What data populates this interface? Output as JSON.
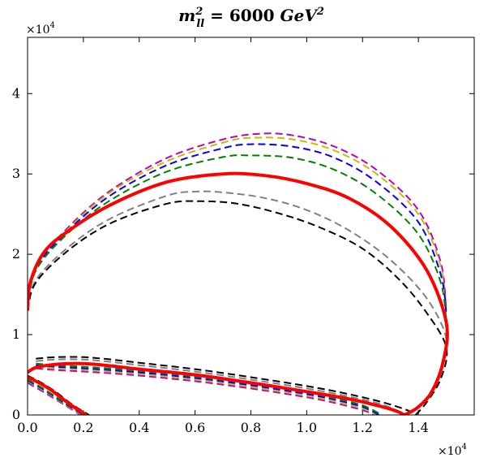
{
  "chart_data": {
    "type": "line",
    "title": {
      "symbol": "m",
      "superscript": "2",
      "subscript": "ll",
      "rest": " = 6000 ",
      "unit": "GeV",
      "unit_superscript": "2"
    },
    "xlabel": "",
    "ylabel": "",
    "x_multiplier": {
      "base": "×10",
      "exp": "4"
    },
    "y_multiplier": {
      "base": "×10",
      "exp": "4"
    },
    "xlim": [
      0,
      16000
    ],
    "ylim": [
      0,
      47000
    ],
    "x_ticks": [
      {
        "value": 0,
        "label": "0.0"
      },
      {
        "value": 2000,
        "label": "0.2"
      },
      {
        "value": 4000,
        "label": "0.4"
      },
      {
        "value": 6000,
        "label": "0.6"
      },
      {
        "value": 8000,
        "label": "0.8"
      },
      {
        "value": 10000,
        "label": "1.0"
      },
      {
        "value": 12000,
        "label": "1.2"
      },
      {
        "value": 14000,
        "label": "1.4"
      }
    ],
    "y_ticks": [
      {
        "value": 0,
        "label": "0"
      },
      {
        "value": 10000,
        "label": "1"
      },
      {
        "value": 20000,
        "label": "2"
      },
      {
        "value": 30000,
        "label": "3"
      },
      {
        "value": 40000,
        "label": "4"
      }
    ],
    "grid": false,
    "series": [
      {
        "name": "magenta",
        "color": "#bf00bf",
        "dashed": true,
        "width": 2,
        "segments": [
          [
            [
              0,
              13000
            ],
            [
              300,
              18500
            ],
            [
              1500,
              23500
            ],
            [
              3000,
              28000
            ],
            [
              5000,
              32000
            ],
            [
              7000,
              34300
            ],
            [
              8300,
              35000
            ],
            [
              9500,
              34800
            ],
            [
              11000,
              33400
            ],
            [
              12500,
              30500
            ],
            [
              14000,
              25500
            ],
            [
              14800,
              19000
            ],
            [
              15000,
              13000
            ]
          ],
          [
            [
              300,
              5800
            ],
            [
              1000,
              5600
            ],
            [
              2500,
              5300
            ],
            [
              4000,
              4900
            ],
            [
              6000,
              4200
            ],
            [
              8000,
              3300
            ],
            [
              10000,
              2200
            ],
            [
              11000,
              1500
            ],
            [
              12000,
              600
            ],
            [
              12400,
              0
            ]
          ],
          [
            [
              0,
              4000
            ],
            [
              600,
              2800
            ],
            [
              1300,
              1300
            ],
            [
              1900,
              0
            ]
          ]
        ]
      },
      {
        "name": "olive",
        "color": "#bfbf00",
        "dashed": true,
        "width": 2,
        "segments": [
          [
            [
              0,
              13000
            ],
            [
              300,
              18500
            ],
            [
              1500,
              23300
            ],
            [
              3000,
              27800
            ],
            [
              5000,
              31600
            ],
            [
              7000,
              33900
            ],
            [
              8000,
              34500
            ],
            [
              9500,
              34300
            ],
            [
              11000,
              32900
            ],
            [
              12500,
              30000
            ],
            [
              14000,
              25000
            ],
            [
              14800,
              18500
            ],
            [
              15000,
              13000
            ]
          ],
          [
            [
              300,
              6000
            ],
            [
              1000,
              5800
            ],
            [
              2500,
              5500
            ],
            [
              4000,
              5100
            ],
            [
              6000,
              4400
            ],
            [
              8000,
              3500
            ],
            [
              10000,
              2400
            ],
            [
              11000,
              1700
            ],
            [
              12000,
              800
            ],
            [
              12500,
              0
            ]
          ],
          [
            [
              0,
              4200
            ],
            [
              600,
              3000
            ],
            [
              1300,
              1400
            ],
            [
              1950,
              0
            ]
          ]
        ]
      },
      {
        "name": "blue",
        "color": "#0000ff",
        "dashed": true,
        "width": 2,
        "segments": [
          [
            [
              0,
              13000
            ],
            [
              300,
              18300
            ],
            [
              1500,
              23100
            ],
            [
              3000,
              27400
            ],
            [
              5000,
              31100
            ],
            [
              7000,
              33200
            ],
            [
              8000,
              33700
            ],
            [
              9500,
              33400
            ],
            [
              11000,
              32000
            ],
            [
              12500,
              29000
            ],
            [
              14000,
              24000
            ],
            [
              14800,
              17500
            ],
            [
              15000,
              12500
            ]
          ],
          [
            [
              300,
              6200
            ],
            [
              1000,
              6000
            ],
            [
              2500,
              5700
            ],
            [
              4000,
              5300
            ],
            [
              6000,
              4600
            ],
            [
              8000,
              3700
            ],
            [
              10000,
              2600
            ],
            [
              11000,
              1900
            ],
            [
              12000,
              1000
            ],
            [
              12600,
              0
            ]
          ],
          [
            [
              0,
              4300
            ],
            [
              600,
              3100
            ],
            [
              1300,
              1500
            ],
            [
              2000,
              0
            ]
          ]
        ]
      },
      {
        "name": "green",
        "color": "#008000",
        "dashed": true,
        "width": 2,
        "segments": [
          [
            [
              0,
              13000
            ],
            [
              300,
              18000
            ],
            [
              1500,
              22800
            ],
            [
              3000,
              26800
            ],
            [
              5000,
              30300
            ],
            [
              7000,
              32100
            ],
            [
              8000,
              32300
            ],
            [
              9500,
              32000
            ],
            [
              11000,
              30500
            ],
            [
              12500,
              27500
            ],
            [
              14000,
              22500
            ],
            [
              14800,
              16500
            ],
            [
              15000,
              11500
            ]
          ],
          [
            [
              300,
              6400
            ],
            [
              1000,
              6200
            ],
            [
              2500,
              5900
            ],
            [
              4000,
              5500
            ],
            [
              6000,
              4800
            ],
            [
              8000,
              3900
            ],
            [
              10000,
              2800
            ],
            [
              11000,
              2100
            ],
            [
              12000,
              1200
            ],
            [
              12700,
              0
            ]
          ],
          [
            [
              0,
              4400
            ],
            [
              600,
              3200
            ],
            [
              1300,
              1600
            ],
            [
              2050,
              0
            ]
          ]
        ]
      },
      {
        "name": "red",
        "color": "#ff0000",
        "dashed": false,
        "width": 4,
        "segments": [
          [
            [
              0,
              13000
            ],
            [
              100,
              16500
            ],
            [
              600,
              20300
            ],
            [
              1500,
              23000
            ],
            [
              3000,
              26200
            ],
            [
              5000,
              29000
            ],
            [
              7000,
              30000
            ],
            [
              8500,
              29800
            ],
            [
              10000,
              28800
            ],
            [
              11500,
              27000
            ],
            [
              13000,
              23500
            ],
            [
              14300,
              18000
            ],
            [
              15000,
              11500
            ],
            [
              14900,
              6800
            ],
            [
              14500,
              3000
            ],
            [
              14000,
              1000
            ],
            [
              13500,
              0
            ]
          ],
          [
            [
              0,
              5300
            ],
            [
              300,
              5900
            ],
            [
              1000,
              6300
            ],
            [
              2000,
              6400
            ],
            [
              3000,
              6100
            ],
            [
              4000,
              5700
            ],
            [
              6000,
              5000
            ],
            [
              8000,
              4000
            ],
            [
              10000,
              2900
            ],
            [
              11500,
              2000
            ],
            [
              12500,
              1200
            ],
            [
              13200,
              500
            ],
            [
              13500,
              0
            ]
          ],
          [
            [
              0,
              4700
            ],
            [
              300,
              4200
            ],
            [
              800,
              3200
            ],
            [
              1300,
              1900
            ],
            [
              1700,
              900
            ],
            [
              2100,
              0
            ]
          ]
        ]
      },
      {
        "name": "gray",
        "color": "#808080",
        "dashed": true,
        "width": 2,
        "segments": [
          [
            [
              0,
              13000
            ],
            [
              300,
              16800
            ],
            [
              1500,
              21000
            ],
            [
              3000,
              24500
            ],
            [
              5000,
              27300
            ],
            [
              6000,
              27800
            ],
            [
              7000,
              27700
            ],
            [
              8500,
              27000
            ],
            [
              10000,
              25500
            ],
            [
              11500,
              23000
            ],
            [
              13000,
              19300
            ],
            [
              14300,
              14500
            ],
            [
              15000,
              9500
            ],
            [
              14800,
              5500
            ],
            [
              14300,
              2200
            ],
            [
              13600,
              0
            ]
          ],
          [
            [
              300,
              6700
            ],
            [
              1000,
              6900
            ],
            [
              2000,
              6900
            ],
            [
              3000,
              6600
            ],
            [
              4000,
              6200
            ],
            [
              6000,
              5400
            ],
            [
              8000,
              4400
            ],
            [
              10000,
              3300
            ],
            [
              11500,
              2300
            ],
            [
              12700,
              1300
            ],
            [
              13600,
              0
            ]
          ],
          [
            [
              0,
              4800
            ],
            [
              500,
              3900
            ],
            [
              1000,
              2700
            ],
            [
              1600,
              1200
            ],
            [
              2200,
              0
            ]
          ]
        ]
      },
      {
        "name": "black",
        "color": "#000000",
        "dashed": true,
        "width": 2,
        "segments": [
          [
            [
              0,
              13000
            ],
            [
              300,
              16500
            ],
            [
              1500,
              20600
            ],
            [
              3000,
              23900
            ],
            [
              5000,
              26300
            ],
            [
              6200,
              26600
            ],
            [
              7500,
              26300
            ],
            [
              9000,
              25100
            ],
            [
              10500,
              23300
            ],
            [
              12000,
              20700
            ],
            [
              13300,
              16900
            ],
            [
              14300,
              12700
            ],
            [
              15000,
              8400
            ],
            [
              14800,
              4500
            ],
            [
              14300,
              1600
            ],
            [
              13900,
              0
            ]
          ],
          [
            [
              300,
              7000
            ],
            [
              1000,
              7200
            ],
            [
              2000,
              7200
            ],
            [
              3000,
              6900
            ],
            [
              4000,
              6500
            ],
            [
              6000,
              5700
            ],
            [
              8000,
              4700
            ],
            [
              10000,
              3600
            ],
            [
              11500,
              2600
            ],
            [
              12700,
              1600
            ],
            [
              13600,
              600
            ],
            [
              13900,
              0
            ]
          ],
          [
            [
              0,
              4900
            ],
            [
              500,
              4000
            ],
            [
              1000,
              2900
            ],
            [
              1600,
              1300
            ],
            [
              2200,
              0
            ]
          ]
        ]
      }
    ]
  }
}
